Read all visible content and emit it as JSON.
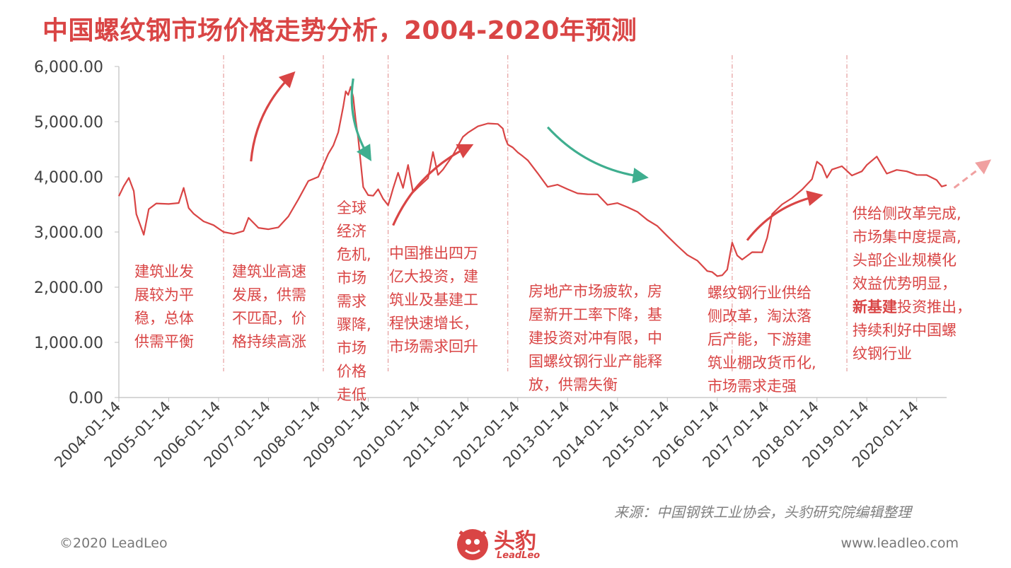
{
  "title": "中国螺纹钢市场价格走势分析，2004-2020年预测",
  "chart_data": {
    "type": "line",
    "title": "中国螺纹钢市场价格走势分析，2004-2020年预测",
    "xlabel": "",
    "ylabel": "",
    "ylim": [
      0,
      6000
    ],
    "y_ticks": [
      "6,000.00",
      "5,000.00",
      "4,000.00",
      "3,000.00",
      "2,000.00",
      "1,000.00",
      "0.00"
    ],
    "x_ticks": [
      "2004-01-14",
      "2005-01-14",
      "2006-01-14",
      "2007-01-14",
      "2008-01-14",
      "2009-01-14",
      "2010-01-14",
      "2011-01-14",
      "2012-01-14",
      "2013-01-14",
      "2014-01-14",
      "2015-01-14",
      "2016-01-14",
      "2017-01-14",
      "2018-01-14",
      "2019-01-14",
      "2020-01-14"
    ],
    "grid": false,
    "series": [
      {
        "color": "#d94545",
        "x": [
          2004.0,
          2004.1,
          2004.2,
          2004.3,
          2004.35,
          2004.5,
          2004.6,
          2004.75,
          2005.0,
          2005.2,
          2005.3,
          2005.4,
          2005.5,
          2005.7,
          2005.9,
          2006.1,
          2006.3,
          2006.5,
          2006.6,
          2006.8,
          2007.0,
          2007.2,
          2007.4,
          2007.6,
          2007.8,
          2008.0,
          2008.2,
          2008.3,
          2008.4,
          2008.5,
          2008.55,
          2008.6,
          2008.65,
          2008.7,
          2008.75,
          2008.8,
          2008.9,
          2009.0,
          2009.1,
          2009.2,
          2009.3,
          2009.4,
          2009.45,
          2009.5,
          2009.6,
          2009.7,
          2009.8,
          2009.9,
          2010.0,
          2010.2,
          2010.3,
          2010.4,
          2010.5,
          2010.7,
          2010.9,
          2011.0,
          2011.2,
          2011.4,
          2011.6,
          2011.7,
          2011.75,
          2011.8,
          2011.9,
          2012.0,
          2012.1,
          2012.2,
          2012.4,
          2012.6,
          2012.8,
          2013.0,
          2013.2,
          2013.4,
          2013.6,
          2013.8,
          2014.0,
          2014.2,
          2014.4,
          2014.6,
          2014.8,
          2015.0,
          2015.2,
          2015.4,
          2015.6,
          2015.8,
          2015.9,
          2016.0,
          2016.1,
          2016.2,
          2016.3,
          2016.4,
          2016.5,
          2016.7,
          2016.9,
          2017.0,
          2017.1,
          2017.3,
          2017.5,
          2017.7,
          2017.9,
          2018.0,
          2018.1,
          2018.2,
          2018.3,
          2018.5,
          2018.7,
          2018.9,
          2019.0,
          2019.2,
          2019.4,
          2019.6,
          2019.8,
          2020.0,
          2020.2,
          2020.4,
          2020.5,
          2020.6
        ],
        "values": [
          3650,
          3850,
          3950,
          3750,
          3300,
          2950,
          3400,
          3550,
          3500,
          3550,
          3800,
          3450,
          3300,
          3200,
          3100,
          3000,
          2950,
          3050,
          3250,
          3100,
          3050,
          3100,
          3250,
          3600,
          3900,
          4000,
          4400,
          4600,
          4800,
          5300,
          5550,
          5500,
          5600,
          5450,
          5000,
          4700,
          3800,
          3700,
          3650,
          3800,
          3600,
          3500,
          3600,
          3800,
          4050,
          3800,
          4200,
          3750,
          3800,
          4000,
          4450,
          4050,
          4100,
          4400,
          4700,
          4800,
          4900,
          5000,
          4950,
          4900,
          4700,
          4600,
          4500,
          4450,
          4350,
          4300,
          4050,
          3850,
          3850,
          3800,
          3700,
          3700,
          3650,
          3500,
          3500,
          3450,
          3350,
          3250,
          3100,
          2950,
          2750,
          2600,
          2450,
          2300,
          2250,
          2200,
          2200,
          2350,
          2800,
          2600,
          2500,
          2650,
          2600,
          2900,
          3300,
          3500,
          3600,
          3800,
          3950,
          4300,
          4200,
          4000,
          4100,
          4200,
          4000,
          4100,
          4200,
          4400,
          4050,
          4150,
          4100,
          4050,
          4000,
          3950,
          3800,
          3850
        ]
      }
    ],
    "forecast": {
      "x": [
        2020.75,
        2021.4
      ],
      "values": [
        3800,
        4250
      ],
      "color": "#f0a0a0"
    },
    "trend_arrows": [
      {
        "x": [
          2006.65,
          2007.45
        ],
        "values": [
          4280,
          5830
        ],
        "color": "#d94545"
      },
      {
        "x": [
          2008.7,
          2009.0
        ],
        "values": [
          5780,
          4380
        ],
        "color": "#3fae8f"
      },
      {
        "x": [
          2009.5,
          2011.0
        ],
        "values": [
          3120,
          4540
        ],
        "color": "#d94545"
      },
      {
        "x": [
          2012.6,
          2014.5
        ],
        "values": [
          4900,
          4000
        ],
        "color": "#3fae8f"
      },
      {
        "x": [
          2016.6,
          2018.0
        ],
        "values": [
          2850,
          3650
        ],
        "color": "#d94545"
      }
    ],
    "period_dividers": [
      2006.1,
      2008.1,
      2009.4,
      2011.8,
      2016.3,
      2018.6
    ],
    "annotations": [
      {
        "lines": [
          "建筑业发",
          "展较为平",
          "稳，总体",
          "供需平衡"
        ]
      },
      {
        "lines": [
          "建筑业高速",
          "发展，供需",
          "不匹配，价",
          "格持续高涨"
        ]
      },
      {
        "lines": [
          "全球",
          "经济",
          "危机,",
          "市场",
          "需求",
          "骤降,",
          "市场",
          "价格",
          "走低"
        ]
      },
      {
        "lines": [
          "中国推出四万",
          "亿大投资，建",
          "筑业及基建工",
          "程快速增长，",
          "市场需求回升"
        ]
      },
      {
        "lines": [
          "房地产市场疲软，房",
          "屋新开工率下降，基",
          "建投资对冲有限，中",
          "国螺纹钢行业产能释",
          "放，供需失衡"
        ]
      },
      {
        "lines": [
          "螺纹钢行业供给",
          "侧改革，淘汰落",
          "后产能，下游建",
          "筑业棚改货币化,",
          "市场需求走强"
        ]
      },
      {
        "lines": [
          "供给侧改革完成,",
          "市场集中度提高,",
          "头部企业规模化",
          "效益优势明显，"
        ],
        "bold_line": "新基建",
        "rest_line": "投资推出，",
        "tail_lines": [
          "持续利好中国螺",
          "纹钢行业"
        ]
      }
    ]
  },
  "source": "来源：中国钢铁工业协会，头豹研究院编辑整理",
  "footer": {
    "copyright": "©2020 LeadLeo",
    "website": "www.leadleo.com"
  },
  "logo": {
    "text": "头豹",
    "sub": "LeadLeo"
  }
}
